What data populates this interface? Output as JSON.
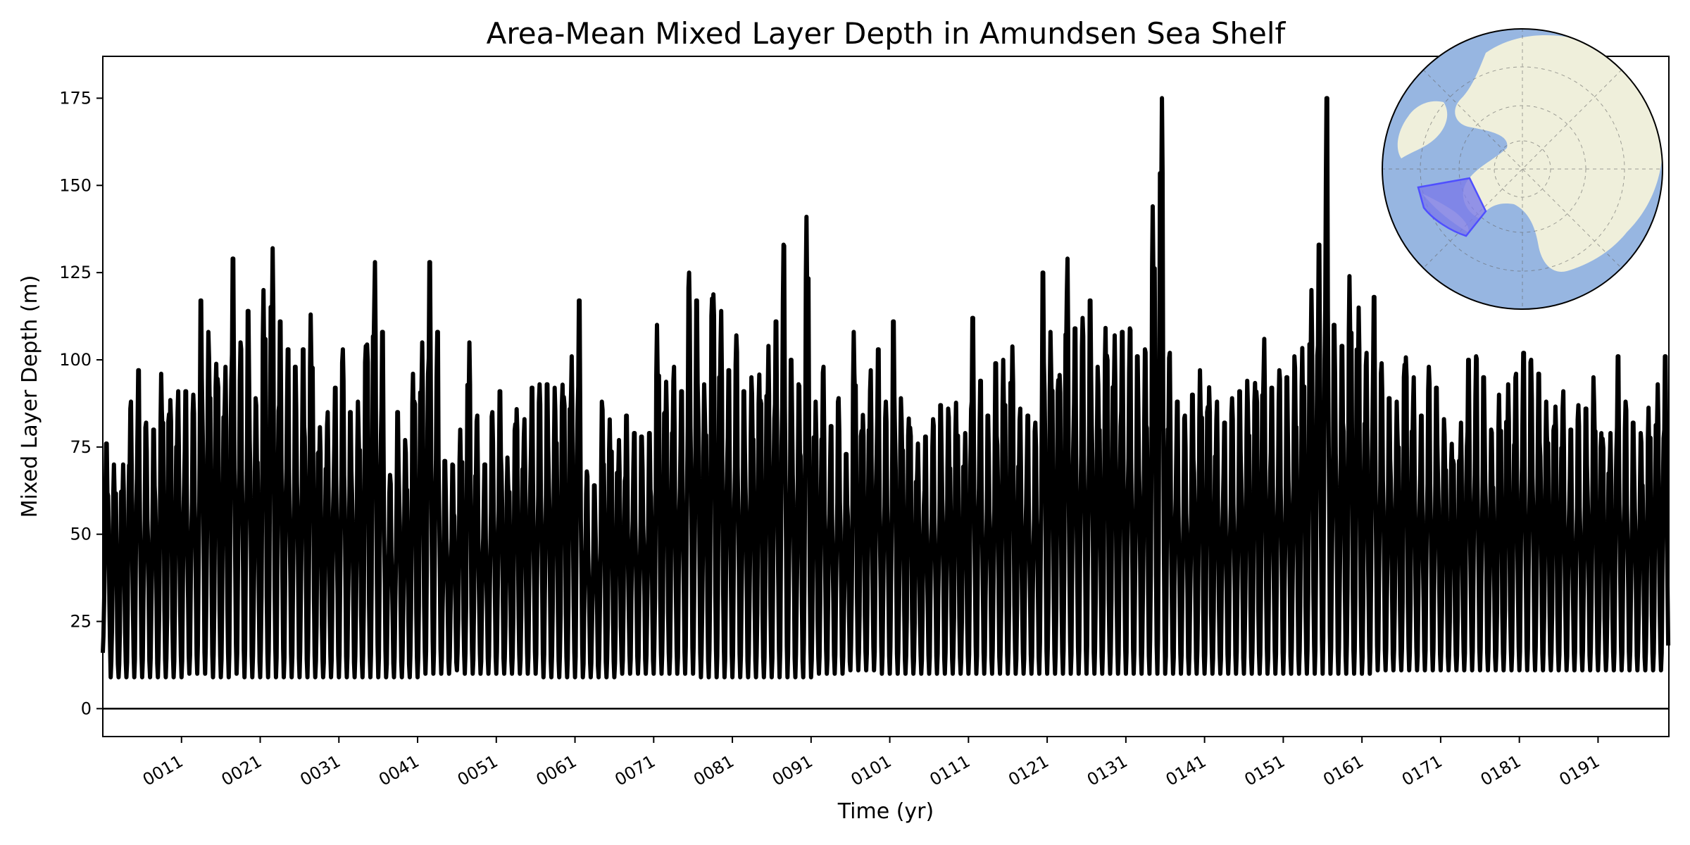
{
  "chart_data": {
    "type": "line",
    "title": "Area-Mean Mixed Layer Depth in Amundsen Sea Shelf",
    "xlabel": "Time (yr)",
    "ylabel": "Mixed Layer Depth (m)",
    "xlim": [
      1,
      200
    ],
    "ylim": [
      -8,
      187
    ],
    "yticks": [
      0,
      25,
      50,
      75,
      100,
      125,
      150,
      175
    ],
    "xticks": [
      11,
      21,
      31,
      41,
      51,
      61,
      71,
      81,
      91,
      101,
      111,
      121,
      131,
      141,
      151,
      161,
      171,
      181,
      191
    ],
    "xtick_labels": [
      "0011",
      "0021",
      "0031",
      "0041",
      "0051",
      "0061",
      "0071",
      "0081",
      "0091",
      "0101",
      "0111",
      "0121",
      "0131",
      "0141",
      "0151",
      "0161",
      "0171",
      "0181",
      "0191"
    ],
    "zero_line": 0,
    "series": [
      {
        "name": "Mixed Layer Depth",
        "color": "#000000",
        "x_start_year": 1,
        "samples_per_year": 12,
        "annual_max": [
          76,
          70,
          70,
          88,
          97,
          82,
          80,
          96,
          92,
          91,
          91,
          90,
          117,
          108,
          103,
          98,
          129,
          105,
          114,
          89,
          120,
          132,
          111,
          103,
          98,
          103,
          113,
          82,
          85,
          92,
          103,
          85,
          88,
          111,
          128,
          108,
          67,
          85,
          77,
          98,
          105,
          128,
          108,
          71,
          70,
          80,
          105,
          84,
          70,
          85,
          91,
          72,
          89,
          83,
          92,
          93,
          93,
          92,
          97,
          101,
          117,
          68,
          64,
          88,
          83,
          77,
          84,
          79,
          78,
          79,
          110,
          95,
          98,
          91,
          125,
          117,
          93,
          126,
          114,
          97,
          107,
          91,
          95,
          98,
          104,
          111,
          133,
          100,
          93,
          141,
          88,
          98,
          81,
          89,
          73,
          108,
          87,
          97,
          103,
          88,
          111,
          89,
          87,
          76,
          78,
          83,
          87,
          86,
          88,
          79,
          112,
          94,
          84,
          99,
          100,
          105,
          86,
          84,
          82,
          125,
          108,
          101,
          129,
          109,
          112,
          117,
          98,
          112,
          107,
          108,
          109,
          101,
          103,
          144,
          175,
          102,
          88,
          84,
          90,
          97,
          95,
          88,
          82,
          89,
          91,
          94,
          98,
          106,
          92,
          97,
          95,
          101,
          104,
          120,
          133,
          175,
          110,
          104,
          124,
          116,
          102,
          118,
          99,
          89,
          88,
          106,
          95,
          84,
          98,
          92,
          83,
          78,
          82,
          100,
          101,
          95,
          80,
          90,
          93,
          96,
          102,
          100,
          96,
          88,
          89,
          91,
          80,
          87,
          86,
          95,
          83,
          79,
          101,
          88,
          82,
          79,
          87,
          93,
          101
        ],
        "annual_min": [
          16,
          9,
          9,
          9,
          9,
          9,
          9,
          9,
          9,
          9,
          9,
          10,
          10,
          10,
          9,
          9,
          9,
          10,
          9,
          9,
          9,
          9,
          9,
          9,
          9,
          9,
          9,
          9,
          9,
          9,
          9,
          9,
          9,
          9,
          9,
          9,
          9,
          9,
          9,
          9,
          9,
          10,
          10,
          10,
          10,
          11,
          10,
          10,
          10,
          10,
          10,
          10,
          10,
          10,
          10,
          10,
          9,
          9,
          9,
          9,
          9,
          9,
          9,
          9,
          9,
          9,
          10,
          10,
          10,
          10,
          10,
          10,
          10,
          10,
          10,
          10,
          9,
          9,
          9,
          9,
          9,
          9,
          9,
          9,
          9,
          9,
          9,
          9,
          9,
          9,
          9,
          10,
          10,
          10,
          10,
          11,
          11,
          11,
          11,
          10,
          10,
          10,
          10,
          10,
          10,
          10,
          10,
          10,
          10,
          10,
          10,
          10,
          10,
          10,
          10,
          10,
          10,
          10,
          10,
          10,
          10,
          10,
          10,
          10,
          10,
          10,
          10,
          10,
          10,
          10,
          10,
          10,
          10,
          10,
          10,
          10,
          10,
          10,
          10,
          10,
          10,
          10,
          10,
          10,
          10,
          10,
          10,
          10,
          10,
          10,
          10,
          10,
          10,
          10,
          10,
          10,
          10,
          10,
          10,
          10,
          10,
          10,
          11,
          11,
          11,
          11,
          11,
          11,
          11,
          11,
          11,
          11,
          11,
          11,
          11,
          11,
          11,
          11,
          11,
          11,
          11,
          11,
          11,
          11,
          11,
          11,
          11,
          11,
          11,
          11,
          11,
          11,
          11,
          11,
          11,
          11,
          11,
          11,
          11,
          11
        ]
      }
    ],
    "inset_map": {
      "description_label": "",
      "ocean_color": "#97b6e1",
      "land_color": "#efefdb",
      "region_color": "#4f4fff",
      "region_fill_color": "#7a7ae8"
    }
  }
}
